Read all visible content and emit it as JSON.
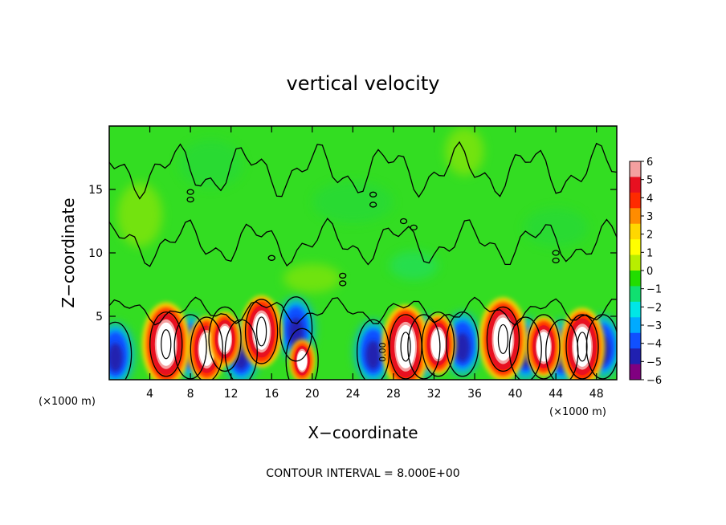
{
  "chart_data": {
    "type": "heatmap",
    "title": "vertical velocity",
    "xlabel": "X−coordinate",
    "ylabel": "Z−coordinate",
    "x_unit_left": "(×1000 m)",
    "x_unit_right": "(×1000 m)",
    "footer": "CONTOUR INTERVAL = 8.000E+00",
    "xlim": [
      0,
      50
    ],
    "ylim": [
      0,
      20
    ],
    "x_ticks": [
      4,
      8,
      12,
      16,
      20,
      24,
      28,
      32,
      36,
      40,
      44,
      48
    ],
    "x_tick_labels": [
      "4",
      "8",
      "12",
      "16",
      "20",
      "24",
      "28",
      "32",
      "36",
      "40",
      "44",
      "48"
    ],
    "y_ticks": [
      5,
      10,
      15
    ],
    "y_tick_labels": [
      "5",
      "10",
      "15"
    ],
    "colorbar": {
      "min": -6,
      "max": 6,
      "labels": [
        "6",
        "5",
        "4",
        "3",
        "2",
        "1",
        "0",
        "−1",
        "−2",
        "−3",
        "−4",
        "−5",
        "−6"
      ],
      "colors": [
        "#f4a0a0",
        "#e81020",
        "#ff2a00",
        "#ff8c00",
        "#ffd700",
        "#ffff00",
        "#b8ee00",
        "#22dd00",
        "#10e070",
        "#00e6e6",
        "#00aaff",
        "#1050ff",
        "#2020b0",
        "#800080"
      ]
    },
    "updrafts": [
      {
        "x": 5.6,
        "z": 2.8,
        "w": 12
      },
      {
        "x": 9.6,
        "z": 2.4,
        "w": 9
      },
      {
        "x": 11.4,
        "z": 3.2,
        "w": 7
      },
      {
        "x": 15.0,
        "z": 3.8,
        "w": 10
      },
      {
        "x": 19.0,
        "z": 1.5,
        "w": 5
      },
      {
        "x": 29.2,
        "z": 2.6,
        "w": 12
      },
      {
        "x": 32.4,
        "z": 2.8,
        "w": 8
      },
      {
        "x": 38.8,
        "z": 3.2,
        "w": 12
      },
      {
        "x": 42.8,
        "z": 2.6,
        "w": 8
      },
      {
        "x": 46.6,
        "z": 2.6,
        "w": 11
      }
    ],
    "downdrafts": [
      {
        "x": 0.6,
        "z": 2.0,
        "w": -7
      },
      {
        "x": 8.0,
        "z": 2.6,
        "w": -6
      },
      {
        "x": 13.0,
        "z": 2.2,
        "w": -5
      },
      {
        "x": 18.4,
        "z": 4.0,
        "w": -4
      },
      {
        "x": 26.0,
        "z": 2.2,
        "w": -6
      },
      {
        "x": 31.0,
        "z": 2.6,
        "w": -5
      },
      {
        "x": 34.8,
        "z": 2.8,
        "w": -6
      },
      {
        "x": 41.0,
        "z": 2.4,
        "w": -6
      },
      {
        "x": 44.6,
        "z": 2.2,
        "w": -5
      },
      {
        "x": 48.6,
        "z": 2.6,
        "w": -6
      }
    ],
    "zero_label": "0.00"
  }
}
